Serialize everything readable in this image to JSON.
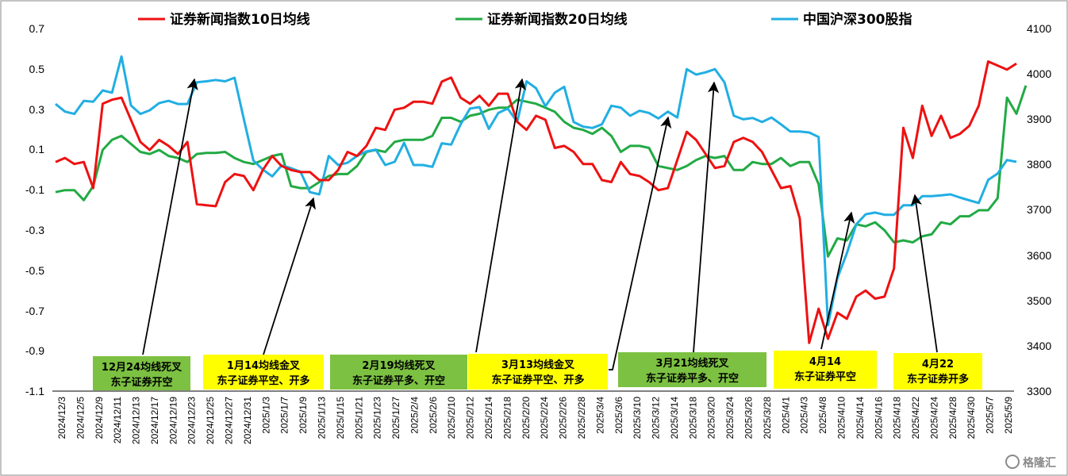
{
  "chart_data": {
    "type": "line",
    "legend_position": "top",
    "grid": false,
    "ylim": [
      -1.1,
      0.7
    ],
    "y2lim": [
      3300,
      4100
    ],
    "yticks": [
      "0.7",
      "0.5",
      "0.3",
      "0.1",
      "-0.1",
      "-0.3",
      "-0.5",
      "-0.7",
      "-0.9",
      "-1.1"
    ],
    "y2ticks": [
      "4100",
      "4000",
      "3900",
      "3800",
      "3700",
      "3600",
      "3500",
      "3400",
      "3300"
    ],
    "x_tick_labels": [
      "2024/12/3",
      "2024/12/5",
      "2024/12/9",
      "2024/12/11",
      "2024/12/13",
      "2024/12/17",
      "2024/12/19",
      "2024/12/23",
      "2024/12/25",
      "2024/12/27",
      "2024/12/31",
      "2025/1/3",
      "2025/1/7",
      "2025/1/9",
      "2025/1/13",
      "2025/1/15",
      "2025/1/21",
      "2025/1/23",
      "2025/1/27",
      "2025/2/4",
      "2025/2/6",
      "2025/2/10",
      "2025/2/12",
      "2025/2/14",
      "2025/2/18",
      "2025/2/20",
      "2025/2/24",
      "2025/2/26",
      "2025/2/28",
      "2025/3/4",
      "2025/3/6",
      "2025/3/10",
      "2025/3/12",
      "2025/3/14",
      "2025/3/18",
      "2025/3/20",
      "2025/3/24",
      "2025/3/26",
      "2025/3/28",
      "2025/4/1",
      "2025/4/3",
      "2025/4/8",
      "2025/4/10",
      "2025/4/14",
      "2025/4/16",
      "2025/4/18",
      "2025/4/22",
      "2025/4/24",
      "2025/4/28",
      "2025/4/30",
      "2025/5/7",
      "2025/5/9"
    ],
    "series": [
      {
        "name": "证券新闻指数10日均线",
        "axis": "left",
        "color": "#ee1111",
        "values": [
          0.04,
          0.06,
          0.03,
          0.04,
          -0.09,
          0.33,
          0.35,
          0.36,
          0.25,
          0.14,
          0.1,
          0.15,
          0.12,
          0.08,
          0.14,
          -0.17,
          -0.175,
          -0.18,
          -0.06,
          -0.02,
          -0.03,
          -0.1,
          0.0,
          0.07,
          0.02,
          0.0,
          -0.01,
          -0.01,
          -0.05,
          -0.05,
          0.0,
          0.09,
          0.07,
          0.12,
          0.21,
          0.2,
          0.3,
          0.31,
          0.34,
          0.34,
          0.33,
          0.44,
          0.46,
          0.36,
          0.33,
          0.37,
          0.32,
          0.38,
          0.38,
          0.24,
          0.2,
          0.27,
          0.25,
          0.11,
          0.12,
          0.09,
          0.03,
          0.03,
          -0.05,
          -0.06,
          0.04,
          -0.02,
          -0.03,
          -0.06,
          -0.1,
          -0.09,
          0.05,
          0.19,
          0.15,
          0.08,
          0.01,
          0.02,
          0.14,
          0.16,
          0.14,
          0.09,
          0.0,
          -0.09,
          -0.08,
          -0.24,
          -0.86,
          -0.69,
          -0.84,
          -0.71,
          -0.74,
          -0.63,
          -0.6,
          -0.64,
          -0.63,
          -0.49,
          0.21,
          0.06,
          0.32,
          0.17,
          0.27,
          0.16,
          0.18,
          0.22,
          0.32,
          0.54,
          0.52,
          0.5,
          0.53
        ]
      },
      {
        "name": "证券新闻指数20日均线",
        "axis": "left",
        "color": "#22aa44",
        "values": [
          -0.11,
          -0.1,
          -0.1,
          -0.15,
          -0.08,
          0.1,
          0.15,
          0.17,
          0.13,
          0.09,
          0.08,
          0.1,
          0.07,
          0.06,
          0.04,
          0.08,
          0.085,
          0.085,
          0.09,
          0.06,
          0.04,
          0.03,
          0.05,
          0.07,
          0.08,
          -0.08,
          -0.09,
          -0.09,
          -0.06,
          -0.03,
          -0.02,
          -0.02,
          0.02,
          0.09,
          0.1,
          0.09,
          0.14,
          0.15,
          0.15,
          0.15,
          0.17,
          0.26,
          0.26,
          0.24,
          0.27,
          0.28,
          0.3,
          0.31,
          0.31,
          0.35,
          0.34,
          0.33,
          0.31,
          0.29,
          0.24,
          0.21,
          0.2,
          0.18,
          0.21,
          0.17,
          0.09,
          0.12,
          0.12,
          0.11,
          0.02,
          0.01,
          0.0,
          0.02,
          0.05,
          0.07,
          0.06,
          0.07,
          0.0,
          0.0,
          0.04,
          0.03,
          0.03,
          0.06,
          0.02,
          0.04,
          0.04,
          -0.07,
          -0.43,
          -0.34,
          -0.35,
          -0.27,
          -0.28,
          -0.26,
          -0.3,
          -0.36,
          -0.35,
          -0.36,
          -0.33,
          -0.32,
          -0.26,
          -0.27,
          -0.23,
          -0.23,
          -0.2,
          -0.2,
          -0.14,
          0.36,
          0.28,
          0.42
        ]
      },
      {
        "name": "中国沪深300股指",
        "axis": "right",
        "color": "#21aee3",
        "values": [
          3935,
          3918,
          3913,
          3942,
          3940,
          3965,
          3960,
          4040,
          3932,
          3913,
          3921,
          3937,
          3942,
          3935,
          3935,
          3983,
          3985,
          3988,
          3985,
          3993,
          3900,
          3810,
          3790,
          3775,
          3799,
          3793,
          3785,
          3740,
          3735,
          3820,
          3800,
          3805,
          3820,
          3830,
          3834,
          3800,
          3807,
          3849,
          3800,
          3800,
          3796,
          3848,
          3845,
          3890,
          3925,
          3928,
          3880,
          3915,
          3925,
          3895,
          3985,
          3970,
          3930,
          3960,
          3973,
          3895,
          3885,
          3882,
          3890,
          3931,
          3927,
          3909,
          3920,
          3915,
          3903,
          3918,
          3905,
          4012,
          4000,
          4005,
          4012,
          3983,
          3909,
          3901,
          3904,
          3895,
          3905,
          3890,
          3874,
          3874,
          3872,
          3862,
          3446,
          3550,
          3605,
          3669,
          3691,
          3695,
          3690,
          3690,
          3711,
          3711,
          3731,
          3731,
          3733,
          3735,
          3728,
          3722,
          3716,
          3767,
          3781,
          3811,
          3807
        ]
      }
    ],
    "annotations": [
      {
        "label_line1": "12月24均线死叉",
        "label_line2": "东子证券开空",
        "bg": "#7cc142"
      },
      {
        "label_line1": "1月14均线金叉",
        "label_line2": "东子证券平空、开多",
        "bg": "#ffff00"
      },
      {
        "label_line1": "2月19均线死叉",
        "label_line2": "东子证券平多、开空",
        "bg": "#7cc142"
      },
      {
        "label_line1": "3月13均线金叉",
        "label_line2": "东子证券平空、开多",
        "bg": "#ffff00"
      },
      {
        "label_line1": "3月21均线死叉",
        "label_line2": "东子证券平多、开空",
        "bg": "#7cc142"
      },
      {
        "label_line1": "4月14",
        "label_line2": "东子证券平空",
        "bg": "#ffff00"
      },
      {
        "label_line1": "4月22",
        "label_line2": "东子证券开多",
        "bg": "#ffff00"
      }
    ],
    "watermark": "格隆汇"
  }
}
